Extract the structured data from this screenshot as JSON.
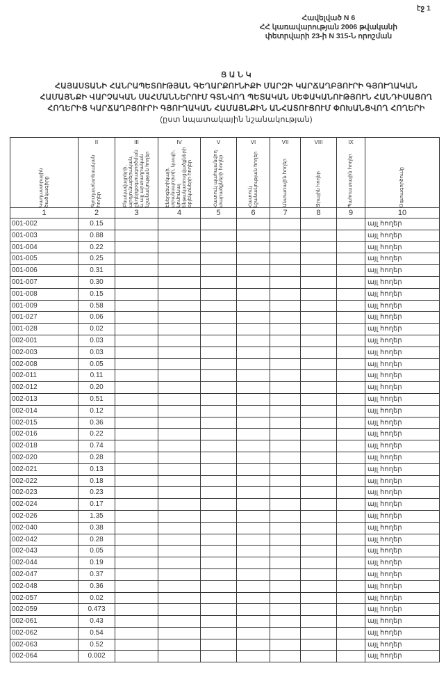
{
  "page_label": "էջ 1",
  "header": {
    "line1": "Հավելված N 6",
    "line2": "ՀՀ կառավարության 2006 թվականի",
    "line3": "փետրվարի 23-ի N 315-Ն որոշման"
  },
  "title": {
    "line1": "Ց Ա Ն Կ",
    "line2": "ՀԱՅԱՍՏԱՆԻ ՀԱՆՐԱՊԵՏՈՒԹՅԱՆ ԳԵՂԱՐՔՈՒՆԻՔԻ ՄԱՐԶԻ ԿԱՐՃԱՂԲՅՈՒՐԻ ԳՅՈՒՂԱԿԱՆ",
    "line3": "ՀԱՄԱՅՆՔԻ ՎԱՐՉԱԿԱՆ ՍԱՀՄԱՆՆԵՐՈՒՄ ԳՏՆՎՈՂ ՊԵՏԱԿԱՆ ՍԵՓԱԿԱՆՈՒԹՅՈՒՆ ՀԱՆԴԻՍԱՑՈՂ",
    "line4": "ՀՈՂԵՐԻՑ ԿԱՐՃԱՂԲՅՈՒՐԻ ԳՅՈՒՂԱԿԱՆ ՀԱՄԱՅՆՔԻՆ ԱՆՀԱՏՈՒՑՈՒՄ ՓՈԽԱՆՑՎՈՂ ՀՈՂԵՐԻ",
    "line5": "(ըստ նպատակային նշանակության)"
  },
  "table": {
    "roman": [
      "",
      "II",
      "III",
      "IV",
      "V",
      "VI",
      "VII",
      "VIII",
      "IX",
      ""
    ],
    "headers": [
      "Կադաստրային ծածկագիրը",
      "Գյուղատնտեսական հողեր",
      "Բնակավայրերի, արդյունաբերական, ընդերքօգտագործման և այլ արտադրական նշանակության հողեր",
      "Էներգետիկայի, տրանսպորտի, կապի, կոմունալ ենթակառուցվածքների օբյեկտների հողեր",
      "Հատուկ պահպանվող տարածքների հողեր",
      "Հատուկ նշանակության հողեր",
      "Անտառային հողեր",
      "Ջրային հողեր",
      "Պահուստային հողեր",
      "Օգտագործումը"
    ],
    "numbers": [
      "1",
      "2",
      "3",
      "4",
      "5",
      "6",
      "7",
      "8",
      "9",
      "10"
    ],
    "rows": [
      {
        "code": "001-002",
        "area": "0.15",
        "use": "այլ հողեր"
      },
      {
        "code": "001-003",
        "area": "0.88",
        "use": "այլ հողեր"
      },
      {
        "code": "001-004",
        "area": "0.22",
        "use": "այլ հողեր"
      },
      {
        "code": "001-005",
        "area": "0.25",
        "use": "այլ հողեր"
      },
      {
        "code": "001-006",
        "area": "0.31",
        "use": "այլ հողեր"
      },
      {
        "code": "001-007",
        "area": "0.30",
        "use": "այլ հողեր"
      },
      {
        "code": "001-008",
        "area": "0.15",
        "use": "այլ հողեր"
      },
      {
        "code": "001-009",
        "area": "0.58",
        "use": "այլ հողեր"
      },
      {
        "code": "001-027",
        "area": "0.06",
        "use": "այլ հողեր"
      },
      {
        "code": "001-028",
        "area": "0.02",
        "use": "այլ հողեր"
      },
      {
        "code": "002-001",
        "area": "0.03",
        "use": "այլ հողեր"
      },
      {
        "code": "002-003",
        "area": "0.03",
        "use": "այլ հողեր"
      },
      {
        "code": "002-008",
        "area": "0.05",
        "use": "այլ հողեր"
      },
      {
        "code": "002-011",
        "area": "0.11",
        "use": "այլ հողեր"
      },
      {
        "code": "002-012",
        "area": "0.20",
        "use": "այլ հողեր"
      },
      {
        "code": "002-013",
        "area": "0.51",
        "use": "այլ հողեր"
      },
      {
        "code": "002-014",
        "area": "0.12",
        "use": "այլ հողեր"
      },
      {
        "code": "002-015",
        "area": "0.36",
        "use": "այլ հողեր"
      },
      {
        "code": "002-016",
        "area": "0.22",
        "use": "այլ հողեր"
      },
      {
        "code": "002-018",
        "area": "0.74",
        "use": "այլ հողեր"
      },
      {
        "code": "002-020",
        "area": "0.28",
        "use": "այլ հողեր"
      },
      {
        "code": "002-021",
        "area": "0.13",
        "use": "այլ հողեր"
      },
      {
        "code": "002-022",
        "area": "0.18",
        "use": "այլ հողեր"
      },
      {
        "code": "002-023",
        "area": "0.23",
        "use": "այլ հողեր"
      },
      {
        "code": "002-024",
        "area": "0.17",
        "use": "այլ հողեր"
      },
      {
        "code": "002-026",
        "area": "1.35",
        "use": "այլ հողեր"
      },
      {
        "code": "002-040",
        "area": "0.38",
        "use": "այլ հողեր"
      },
      {
        "code": "002-042",
        "area": "0.28",
        "use": "այլ հողեր"
      },
      {
        "code": "002-043",
        "area": "0.05",
        "use": "այլ հողեր"
      },
      {
        "code": "002-044",
        "area": "0.19",
        "use": "այլ հողեր"
      },
      {
        "code": "002-047",
        "area": "0.37",
        "use": "այլ հողեր"
      },
      {
        "code": "002-048",
        "area": "0.36",
        "use": "այլ հողեր"
      },
      {
        "code": "002-057",
        "area": "0.02",
        "use": "այլ հողեր"
      },
      {
        "code": "002-059",
        "area": "0.473",
        "use": "այլ հողեր"
      },
      {
        "code": "002-061",
        "area": "0.43",
        "use": "այլ հողեր"
      },
      {
        "code": "002-062",
        "area": "0.54",
        "use": "այլ հողեր"
      },
      {
        "code": "002-063",
        "area": "0.52",
        "use": "այլ հողեր"
      },
      {
        "code": "002-064",
        "area": "0.002",
        "use": "այլ հողեր"
      }
    ]
  }
}
